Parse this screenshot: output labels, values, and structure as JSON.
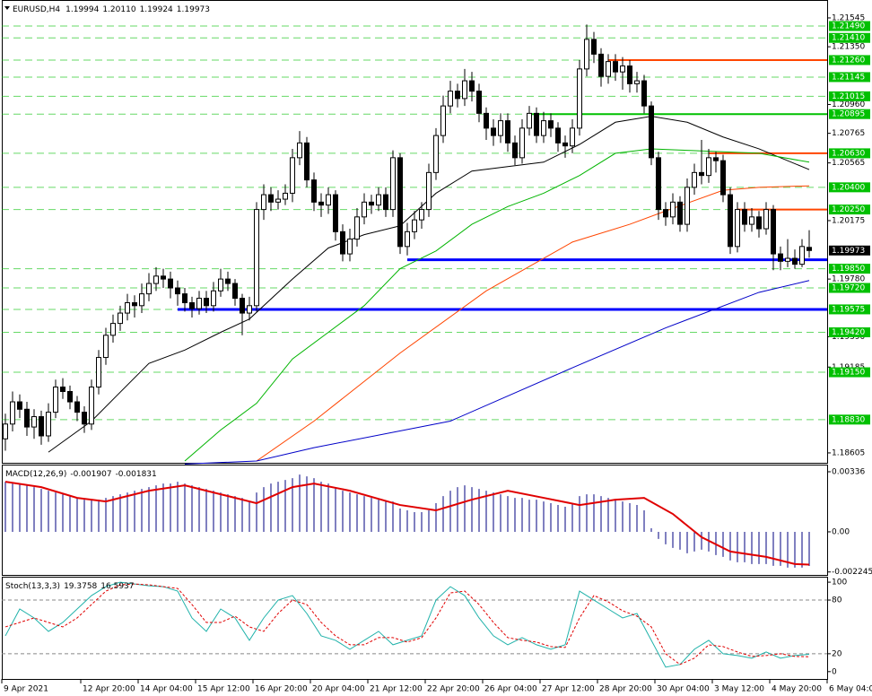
{
  "chart_data": [
    {
      "type": "candlestick",
      "symbol": "EURUSD,H4",
      "legend_ohlc": [
        "1.19994",
        "1.20110",
        "1.19924",
        "1.19973"
      ],
      "ylim": [
        1.18538,
        1.2166
      ],
      "yticks": [
        1.21545,
        {
          "value": 1.2135,
          "label": "1.21350"
        },
        {
          "value": 1.2096,
          "label": "1.20960"
        },
        1.20765,
        1.20565,
        1.20175,
        {
          "value": 1.1978,
          "label": "1.19780"
        },
        {
          "value": 1.1939,
          "label": "1.19390"
        },
        1.19185,
        1.18605
      ],
      "xticks": [
        {
          "value": 0,
          "label": "9 Apr 2021"
        },
        {
          "value": 11,
          "label": "12 Apr 20:00"
        },
        {
          "value": 19,
          "label": "14 Apr 04:00"
        },
        {
          "value": 27,
          "label": "15 Apr 12:00"
        },
        {
          "value": 35,
          "label": "16 Apr 20:00"
        },
        {
          "value": 43,
          "label": "20 Apr 04:00"
        },
        {
          "value": 51,
          "label": "21 Apr 12:00"
        },
        {
          "value": 59,
          "label": "22 Apr 20:00"
        },
        {
          "value": 67,
          "label": "26 Apr 04:00"
        },
        {
          "value": 75,
          "label": "27 Apr 12:00"
        },
        {
          "value": 83,
          "label": "28 Apr 20:00"
        },
        {
          "value": 91,
          "label": "30 Apr 04:00"
        },
        {
          "value": 99,
          "label": "3 May 12:00"
        },
        {
          "value": 107,
          "label": "4 May 20:00"
        },
        {
          "value": 115,
          "label": "6 May 04:00"
        }
      ],
      "open": [
        1.187,
        1.188,
        1.1895,
        1.189,
        1.1878,
        1.1885,
        1.1872,
        1.1888,
        1.1905,
        1.1902,
        1.1895,
        1.1888,
        1.188,
        1.1905,
        1.1925,
        1.194,
        1.1948,
        1.1955,
        1.1962,
        1.196,
        1.1968,
        1.1975,
        1.198,
        1.1978,
        1.1972,
        1.1968,
        1.1962,
        1.1958,
        1.1965,
        1.196,
        1.197,
        1.1978,
        1.1975,
        1.1965,
        1.1955,
        1.196,
        1.2025,
        1.2035,
        1.203,
        1.2032,
        1.2036,
        1.206,
        1.207,
        1.2045,
        1.203,
        1.2028,
        1.2035,
        1.201,
        1.1995,
        1.2005,
        1.202,
        1.203,
        1.2028,
        1.2035,
        1.2025,
        1.206,
        1.2,
        1.201,
        1.2018,
        1.2025,
        1.205,
        1.2075,
        1.2095,
        1.2105,
        1.21,
        1.2112,
        1.2105,
        1.209,
        1.208,
        1.2075,
        1.2085,
        1.207,
        1.206,
        1.208,
        1.209,
        1.2075,
        1.2085,
        1.208,
        1.207,
        1.2068,
        1.208,
        1.212,
        1.214,
        1.213,
        1.2115,
        1.2125,
        1.2118,
        1.2122,
        1.211,
        1.2112,
        1.2095,
        1.206,
        1.2025,
        1.202,
        1.203,
        1.2015,
        1.204,
        1.205,
        1.2048,
        1.206,
        1.2058,
        1.2035,
        1.2,
        1.2025,
        1.2015,
        1.202,
        1.2012,
        1.2025,
        1.1995,
        1.199,
        1.1992,
        1.1988,
        1.19994
      ],
      "high": [
        1.1887,
        1.1902,
        1.19,
        1.1895,
        1.189,
        1.1889,
        1.1894,
        1.191,
        1.1911,
        1.1906,
        1.1899,
        1.1892,
        1.191,
        1.193,
        1.1945,
        1.1954,
        1.196,
        1.1968,
        1.1967,
        1.1975,
        1.1982,
        1.1986,
        1.1985,
        1.1983,
        1.1977,
        1.1972,
        1.1966,
        1.197,
        1.197,
        1.1976,
        1.1985,
        1.1983,
        1.1978,
        1.1968,
        1.1966,
        1.203,
        1.2042,
        1.204,
        1.2038,
        1.2042,
        1.2066,
        1.2078,
        1.2074,
        1.205,
        1.2036,
        1.204,
        1.2038,
        1.2015,
        1.2012,
        1.2026,
        1.2036,
        1.2035,
        1.204,
        1.204,
        1.2065,
        1.2063,
        1.2016,
        1.2024,
        1.203,
        1.2056,
        1.208,
        1.2102,
        1.2112,
        1.211,
        1.212,
        1.2118,
        1.211,
        1.2094,
        1.2086,
        1.209,
        1.209,
        1.2075,
        1.2086,
        1.2095,
        1.2094,
        1.2091,
        1.209,
        1.2084,
        1.2075,
        1.2086,
        1.2126,
        1.215,
        1.2145,
        1.2134,
        1.213,
        1.213,
        1.2128,
        1.2126,
        1.2118,
        1.2116,
        1.2098,
        1.2064,
        1.203,
        1.2036,
        1.2034,
        1.2046,
        1.2056,
        1.2072,
        1.2066,
        1.2064,
        1.2062,
        1.204,
        1.203,
        1.203,
        1.2026,
        1.2024,
        1.203,
        1.2028,
        1.2,
        1.2005,
        1.1998,
        1.2005,
        1.2011
      ],
      "low": [
        1.1862,
        1.1875,
        1.1884,
        1.1872,
        1.187,
        1.1866,
        1.1868,
        1.1884,
        1.1897,
        1.189,
        1.1882,
        1.1874,
        1.1876,
        1.19,
        1.192,
        1.1935,
        1.1943,
        1.195,
        1.1952,
        1.1955,
        1.1963,
        1.197,
        1.1972,
        1.1965,
        1.196,
        1.1956,
        1.1952,
        1.1954,
        1.1955,
        1.1956,
        1.1966,
        1.197,
        1.196,
        1.194,
        1.195,
        1.1956,
        1.2018,
        1.2024,
        1.2025,
        1.2028,
        1.203,
        1.2055,
        1.204,
        1.2024,
        1.202,
        1.2022,
        1.2004,
        1.199,
        1.199,
        1.2,
        1.2015,
        1.2022,
        1.2024,
        1.202,
        1.202,
        1.1995,
        1.1994,
        1.2005,
        1.2012,
        1.202,
        1.2045,
        1.207,
        1.209,
        1.2094,
        1.2095,
        1.2098,
        1.2084,
        1.2072,
        1.2068,
        1.207,
        1.2064,
        1.2055,
        1.2056,
        1.2075,
        1.207,
        1.207,
        1.2074,
        1.2064,
        1.206,
        1.2063,
        1.2075,
        1.2115,
        1.2124,
        1.2108,
        1.211,
        1.2112,
        1.2106,
        1.2104,
        1.2104,
        1.209,
        1.2055,
        1.2018,
        1.2014,
        1.2015,
        1.201,
        1.201,
        1.2035,
        1.2042,
        1.2043,
        1.205,
        1.203,
        1.1995,
        1.1996,
        1.201,
        1.201,
        1.2006,
        1.2008,
        1.1984,
        1.1984,
        1.1986,
        1.1985,
        1.1986,
        1.19924
      ],
      "close": [
        1.188,
        1.1895,
        1.189,
        1.1878,
        1.1885,
        1.1872,
        1.1888,
        1.1905,
        1.1902,
        1.1895,
        1.1888,
        1.188,
        1.1905,
        1.1925,
        1.194,
        1.1948,
        1.1955,
        1.1962,
        1.196,
        1.1968,
        1.1975,
        1.198,
        1.1978,
        1.1972,
        1.1968,
        1.1962,
        1.1958,
        1.1965,
        1.196,
        1.197,
        1.1978,
        1.1975,
        1.1965,
        1.1955,
        1.196,
        1.2025,
        1.2035,
        1.203,
        1.2032,
        1.2036,
        1.206,
        1.207,
        1.2045,
        1.203,
        1.2028,
        1.2035,
        1.201,
        1.1995,
        1.2005,
        1.202,
        1.203,
        1.2028,
        1.2035,
        1.2025,
        1.206,
        1.2,
        1.201,
        1.2018,
        1.2025,
        1.205,
        1.2075,
        1.2095,
        1.2105,
        1.21,
        1.2112,
        1.2105,
        1.209,
        1.208,
        1.2075,
        1.2085,
        1.207,
        1.206,
        1.208,
        1.209,
        1.2075,
        1.2085,
        1.208,
        1.207,
        1.2068,
        1.208,
        1.212,
        1.214,
        1.213,
        1.2115,
        1.2125,
        1.2118,
        1.2122,
        1.211,
        1.2112,
        1.2095,
        1.206,
        1.2025,
        1.202,
        1.203,
        1.2015,
        1.204,
        1.205,
        1.2048,
        1.206,
        1.2058,
        1.2035,
        1.2,
        1.2025,
        1.2015,
        1.202,
        1.2012,
        1.2025,
        1.1995,
        1.199,
        1.1992,
        1.1988,
        1.2,
        1.19973
      ],
      "series": [
        {
          "color": "#000000",
          "x": [
            6,
            12,
            20,
            25,
            30,
            34,
            40,
            45,
            50,
            55,
            60,
            65,
            70,
            75,
            80,
            85,
            90,
            95,
            100,
            105,
            112
          ],
          "values": [
            1.1861,
            1.1882,
            1.1921,
            1.193,
            1.1942,
            1.1951,
            1.1978,
            1.1999,
            1.2008,
            1.2014,
            1.2036,
            1.2051,
            1.2054,
            1.2057,
            1.2069,
            1.2084,
            1.2088,
            1.2084,
            1.2074,
            1.2066,
            1.2052
          ]
        },
        {
          "color": "#00b400",
          "x": [
            25,
            30,
            35,
            40,
            45,
            50,
            55,
            60,
            65,
            70,
            75,
            80,
            85,
            90,
            95,
            100,
            105,
            112
          ],
          "values": [
            1.1855,
            1.1876,
            1.1894,
            1.1924,
            1.1942,
            1.196,
            1.1985,
            1.1997,
            1.2015,
            1.2027,
            1.2036,
            1.2048,
            1.2063,
            1.2066,
            1.2065,
            1.2064,
            1.2063,
            1.2057
          ]
        },
        {
          "color": "#ff4500",
          "x": [
            35,
            43,
            55,
            67,
            79,
            87,
            92,
            100,
            105,
            112
          ],
          "values": [
            1.1855,
            1.1882,
            1.1928,
            1.197,
            1.2003,
            1.2015,
            1.2024,
            1.2038,
            1.204,
            1.2041
          ]
        },
        {
          "color": "#0000c8",
          "x": [
            25,
            35,
            43,
            62,
            79,
            92,
            105,
            112
          ],
          "values": [
            1.1853,
            1.1855,
            1.1864,
            1.1882,
            1.1918,
            1.1945,
            1.1969,
            1.1977
          ]
        }
      ],
      "levels": [
        {
          "value": 1.2149,
          "label": "1.21490"
        },
        {
          "value": 1.2141,
          "label": "1.21410"
        },
        {
          "value": 1.2126,
          "label": "1.21260"
        },
        1.21145,
        1.21015,
        1.20895,
        {
          "value": 1.2063,
          "label": "1.20630"
        },
        {
          "value": 1.204,
          "label": "1.20400"
        },
        {
          "value": 1.2025,
          "label": "1.20250"
        },
        {
          "value": 1.1985,
          "label": "1.19850"
        },
        {
          "value": 1.1972,
          "label": "1.19720"
        },
        1.19575,
        {
          "value": 1.1942,
          "label": "1.19420"
        },
        {
          "value": 1.1915,
          "label": "1.19150"
        },
        {
          "value": 1.1883,
          "label": "1.18830"
        }
      ],
      "level_color": "#00c000",
      "lines": [
        {
          "value": 1.2126,
          "color": "#ff4500",
          "from": 84
        },
        {
          "value": 1.20895,
          "color": "#00c000",
          "from": 73
        },
        {
          "value": 1.2063,
          "color": "#ff4500",
          "from": 98
        },
        {
          "value": 1.2025,
          "color": "#ff4500",
          "from": 102
        },
        {
          "value": 1.1991,
          "color": "#0000ff",
          "from": 56
        },
        {
          "value": 1.19575,
          "color": "#0000ff",
          "from": 24
        }
      ]
    },
    {
      "type": "macd",
      "title": "MACD(12,26,9)",
      "ylim": [
        -0.00241,
        0.00371
      ],
      "yticks": [
        0.00336,
        {
          "value": 0,
          "label": "0.00"
        },
        -0.002245
      ],
      "hist_color": "#000080",
      "values": [
        0.0028,
        0.0027,
        0.0027,
        0.0026,
        0.0025,
        0.0024,
        0.0023,
        0.0022,
        0.0021,
        0.002,
        0.0019,
        0.0018,
        0.0018,
        0.0018,
        0.0019,
        0.002,
        0.0021,
        0.0022,
        0.0023,
        0.0024,
        0.0025,
        0.0026,
        0.0027,
        0.0027,
        0.0028,
        0.0027,
        0.0026,
        0.0025,
        0.0024,
        0.0023,
        0.0022,
        0.0021,
        0.002,
        0.0019,
        0.0017,
        0.0022,
        0.0025,
        0.0027,
        0.0028,
        0.0029,
        0.003,
        0.0032,
        0.0031,
        0.003,
        0.0028,
        0.0027,
        0.0025,
        0.0023,
        0.0022,
        0.0021,
        0.002,
        0.0019,
        0.0018,
        0.0017,
        0.0017,
        0.0013,
        0.0012,
        0.0011,
        0.0011,
        0.0012,
        0.0016,
        0.002,
        0.0023,
        0.0025,
        0.0026,
        0.0025,
        0.0024,
        0.0023,
        0.0022,
        0.0021,
        0.002,
        0.0019,
        0.0019,
        0.0018,
        0.0018,
        0.0017,
        0.0016,
        0.0015,
        0.0014,
        0.0016,
        0.002,
        0.0021,
        0.0021,
        0.002,
        0.0019,
        0.0018,
        0.0017,
        0.0016,
        0.0015,
        0.0012,
        0.0002,
        -0.0004,
        -0.0007,
        -0.0009,
        -0.001,
        -0.0012,
        -0.0011,
        -0.001,
        -0.0011,
        -0.0013,
        -0.0014,
        -0.0016,
        -0.0017,
        -0.0017,
        -0.0018,
        -0.0018,
        -0.0018,
        -0.0019,
        -0.0019,
        -0.002,
        -0.002,
        -0.002,
        -0.001907
      ],
      "signal": {
        "color": "#e00000",
        "x": [
          0,
          5,
          10,
          14,
          20,
          25,
          30,
          35,
          40,
          43,
          48,
          55,
          60,
          65,
          70,
          75,
          80,
          85,
          89,
          93,
          97,
          101,
          106,
          110,
          112
        ],
        "values": [
          0.0028,
          0.0025,
          0.0019,
          0.0017,
          0.0023,
          0.0026,
          0.0021,
          0.0016,
          0.0025,
          0.0027,
          0.0023,
          0.0015,
          0.0012,
          0.0018,
          0.0023,
          0.0019,
          0.0015,
          0.0018,
          0.0019,
          0.001,
          -0.0003,
          -0.0011,
          -0.0014,
          -0.0018,
          -0.001831
        ]
      }
    },
    {
      "type": "stochastic",
      "title": "Stoch(13,3,3)",
      "ylim": [
        -8.2,
        105.1
      ],
      "yticks": [
        100,
        80,
        20,
        0
      ],
      "level_lines": [
        80,
        20
      ],
      "x": [
        0,
        2,
        4,
        6,
        8,
        10,
        12,
        14,
        16,
        18,
        20,
        22,
        24,
        26,
        28,
        30,
        32,
        34,
        36,
        38,
        40,
        42,
        44,
        46,
        48,
        50,
        52,
        54,
        56,
        58,
        60,
        62,
        64,
        66,
        68,
        70,
        72,
        74,
        76,
        78,
        80,
        82,
        84,
        86,
        88,
        90,
        92,
        94,
        96,
        98,
        100,
        102,
        104,
        106,
        108,
        110,
        112
      ],
      "series": [
        {
          "color": "#20b2aa",
          "values": [
            40,
            70,
            60,
            45,
            55,
            70,
            85,
            95,
            100,
            98,
            96,
            95,
            90,
            60,
            45,
            70,
            60,
            35,
            60,
            80,
            85,
            65,
            40,
            35,
            25,
            35,
            45,
            30,
            35,
            40,
            80,
            95,
            85,
            60,
            40,
            30,
            38,
            30,
            25,
            30,
            90,
            80,
            70,
            60,
            65,
            35,
            5,
            8,
            25,
            35,
            20,
            18,
            15,
            22,
            15,
            18,
            19.3758
          ]
        },
        {
          "color": "#e00000",
          "dashed": true,
          "values": [
            50,
            55,
            60,
            55,
            50,
            60,
            75,
            90,
            97,
            98,
            97,
            95,
            93,
            75,
            55,
            55,
            62,
            50,
            45,
            65,
            80,
            75,
            55,
            40,
            30,
            30,
            38,
            38,
            33,
            38,
            60,
            88,
            90,
            75,
            55,
            38,
            35,
            33,
            28,
            27,
            60,
            85,
            78,
            68,
            62,
            50,
            20,
            8,
            15,
            30,
            28,
            22,
            17,
            18,
            20,
            17,
            16.5937
          ]
        }
      ]
    }
  ]
}
